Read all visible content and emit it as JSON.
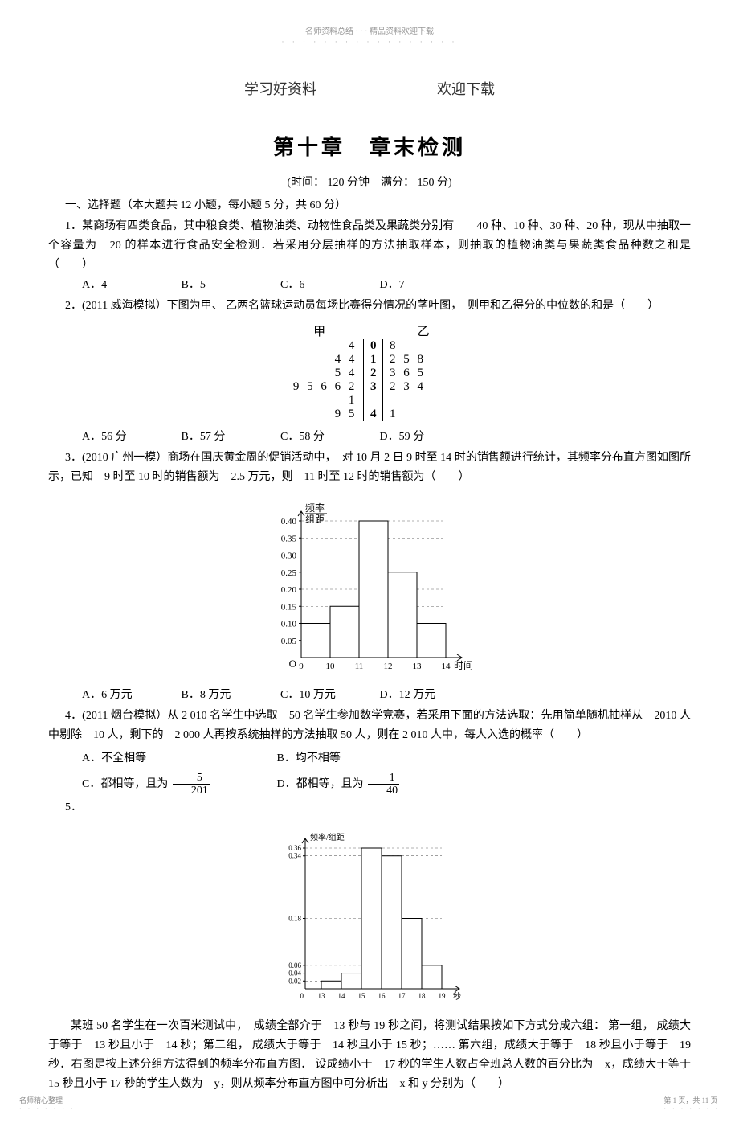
{
  "meta": {
    "top_header": "名师资料总结 · · · 精品资料欢迎下载",
    "top_dashes": "· · · · · · · · · · · · · · · · ·",
    "header_left": "学习好资料",
    "header_right": "欢迎下载",
    "chapter_title": "第十章　章末检测",
    "time_marks": "(时间： 120 分钟　满分： 150 分)",
    "section1": "一、选择题（本大题共 12 小题，每小题 5 分，共 60 分）",
    "footer_left": "名师精心整理",
    "footer_right": "第 1 页，共 11 页",
    "footer_dashes": "· · · · · · ·"
  },
  "q1": {
    "text": "1．某商场有四类食品，其中粮食类、植物油类、动物性食品类及果蔬类分别有　　40 种、10 种、30 种、20 种，现从中抽取一个容量为　20 的样本进行食品安全检测．若采用分层抽样的方法抽取样本，则抽取的植物油类与果蔬类食品种数之和是　　（　　）",
    "A": "A．4",
    "B": "B．5",
    "C": "C．6",
    "D": "D．7"
  },
  "q2": {
    "text": "2．(2011 威海模拟）下图为甲、 乙两名篮球运动员每场比赛得分情况的茎叶图，　则甲和乙得分的中位数的和是（　　）",
    "A": "A．56 分",
    "B": "B．57 分",
    "C": "C．58 分",
    "D": "D．59 分",
    "stem_leaf": {
      "head_left": "甲",
      "head_right": "乙",
      "rows": [
        {
          "left": "4",
          "mid": "0",
          "right": "8"
        },
        {
          "left": "4 4",
          "mid": "1",
          "right": "2 5 8"
        },
        {
          "left": "5 4",
          "mid": "2",
          "right": "3 6 5"
        },
        {
          "left": "9 5 6 6 2 1",
          "mid": "3",
          "right": "2 3 4"
        },
        {
          "left": "9 5",
          "mid": "4",
          "right": "1"
        }
      ]
    }
  },
  "q3": {
    "text": "3．(2010 广州一模）商场在国庆黄金周的促销活动中，　对 10 月 2 日 9 时至 14 时的销售额进行统计，其频率分布直方图如图所示，已知　9 时至 10 时的销售额为　2.5 万元，则　11 时至 12 时的销售额为（　　）",
    "A": "A．6 万元",
    "B": "B．8 万元",
    "C": "C．10 万元",
    "D": "D．12 万元",
    "chart": {
      "ylabel_top": "频率",
      "ylabel_bot": "组距",
      "xlabel": "时间",
      "yticks": [
        "0.05",
        "0.10",
        "0.15",
        "0.20",
        "0.25",
        "0.30",
        "0.35",
        "0.40"
      ],
      "xticks": [
        "9",
        "10",
        "11",
        "12",
        "13",
        "14"
      ],
      "bars": [
        0.1,
        0.15,
        0.4,
        0.25,
        0.1
      ],
      "bar_color": "#ffffff",
      "line_color": "#000000",
      "dash": "3,3"
    }
  },
  "q4": {
    "text": "4．(2011 烟台模拟）从 2 010 名学生中选取　50 名学生参加数学竞赛，若采用下面的方法选取：先用简单随机抽样从　2010 人中剔除　10 人，剩下的　2 000 人再按系统抽样的方法抽取 50 人，则在 2 010 人中，每人入选的概率（　　）",
    "A": "A．不全相等",
    "B": "B．均不相等",
    "C_pre": "C．都相等，且为",
    "C_num": "5",
    "C_den": "201",
    "D_pre": "D．都相等，且为",
    "D_num": "1",
    "D_den": "40"
  },
  "q5": {
    "label": "5．",
    "chart": {
      "ylabel": "频率/组距",
      "xlabel": "秒",
      "yticks": [
        "0.02",
        "0.04",
        "0.06",
        "0.18",
        "0.34",
        "0.36"
      ],
      "yvals": [
        0.02,
        0.04,
        0.06,
        0.18,
        0.34,
        0.36
      ],
      "xticks": [
        "0",
        "13",
        "14",
        "15",
        "16",
        "17",
        "18",
        "19"
      ],
      "bars": [
        0.02,
        0.04,
        0.36,
        0.34,
        0.18,
        0.06
      ],
      "line_color": "#000000",
      "dash": "3,3"
    },
    "text": "某班 50 名学生在一次百米测试中，　成绩全部介于　13 秒与 19 秒之间，将测试结果按如下方式分成六组： 第一组， 成绩大于等于　13 秒且小于　14 秒；第二组， 成绩大于等于　14 秒且小于 15 秒；…… 第六组，成绩大于等于　18 秒且小于等于　19 秒．右图是按上述分组方法得到的频率分布直方图． 设成绩小于　17 秒的学生人数占全班总人数的百分比为　x，成绩大于等于　15 秒且小于 17 秒的学生人数为　y，则从频率分布直方图中可分析出　x 和 y 分别为（　　）"
  }
}
